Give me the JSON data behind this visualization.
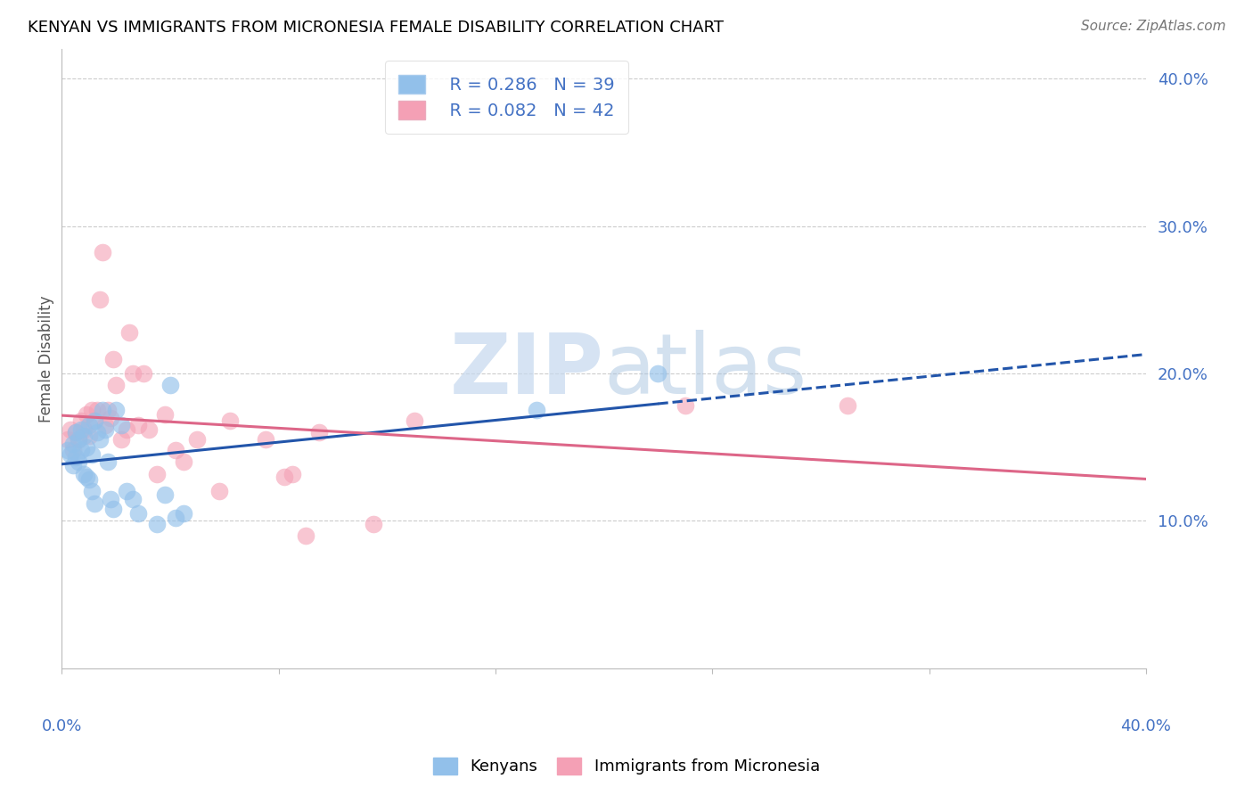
{
  "title": "KENYAN VS IMMIGRANTS FROM MICRONESIA FEMALE DISABILITY CORRELATION CHART",
  "source": "Source: ZipAtlas.com",
  "ylabel": "Female Disability",
  "xlim": [
    0.0,
    0.4
  ],
  "ylim": [
    0.0,
    0.42
  ],
  "yticks": [
    0.1,
    0.2,
    0.3,
    0.4
  ],
  "ytick_labels": [
    "10.0%",
    "20.0%",
    "30.0%",
    "40.0%"
  ],
  "legend_r_kenyan": "R = 0.286",
  "legend_n_kenyan": "N = 39",
  "legend_r_micro": "R = 0.082",
  "legend_n_micro": "N = 42",
  "kenyan_color": "#92C0EA",
  "micro_color": "#F4A0B5",
  "kenyan_line_color": "#2255AA",
  "micro_line_color": "#DD6688",
  "watermark_zip": "ZIP",
  "watermark_atlas": "atlas",
  "kenyan_x": [
    0.002,
    0.003,
    0.004,
    0.004,
    0.005,
    0.005,
    0.006,
    0.006,
    0.007,
    0.007,
    0.008,
    0.008,
    0.009,
    0.009,
    0.01,
    0.01,
    0.011,
    0.011,
    0.012,
    0.012,
    0.013,
    0.014,
    0.015,
    0.016,
    0.017,
    0.018,
    0.019,
    0.02,
    0.022,
    0.024,
    0.026,
    0.028,
    0.035,
    0.038,
    0.04,
    0.042,
    0.045,
    0.175,
    0.22
  ],
  "kenyan_y": [
    0.148,
    0.145,
    0.152,
    0.138,
    0.16,
    0.143,
    0.155,
    0.14,
    0.162,
    0.148,
    0.158,
    0.132,
    0.15,
    0.13,
    0.165,
    0.128,
    0.145,
    0.12,
    0.168,
    0.112,
    0.16,
    0.155,
    0.175,
    0.162,
    0.14,
    0.115,
    0.108,
    0.175,
    0.165,
    0.12,
    0.115,
    0.105,
    0.098,
    0.118,
    0.192,
    0.102,
    0.105,
    0.175,
    0.2
  ],
  "micro_x": [
    0.002,
    0.003,
    0.004,
    0.005,
    0.006,
    0.007,
    0.008,
    0.009,
    0.01,
    0.011,
    0.012,
    0.013,
    0.014,
    0.015,
    0.016,
    0.017,
    0.018,
    0.019,
    0.02,
    0.022,
    0.024,
    0.025,
    0.026,
    0.028,
    0.03,
    0.032,
    0.035,
    0.038,
    0.042,
    0.045,
    0.05,
    0.058,
    0.062,
    0.075,
    0.082,
    0.085,
    0.09,
    0.095,
    0.115,
    0.13,
    0.23,
    0.29
  ],
  "micro_y": [
    0.155,
    0.162,
    0.148,
    0.16,
    0.155,
    0.168,
    0.162,
    0.172,
    0.158,
    0.175,
    0.168,
    0.175,
    0.25,
    0.282,
    0.165,
    0.175,
    0.17,
    0.21,
    0.192,
    0.155,
    0.162,
    0.228,
    0.2,
    0.165,
    0.2,
    0.162,
    0.132,
    0.172,
    0.148,
    0.14,
    0.155,
    0.12,
    0.168,
    0.155,
    0.13,
    0.132,
    0.09,
    0.16,
    0.098,
    0.168,
    0.178,
    0.178
  ]
}
